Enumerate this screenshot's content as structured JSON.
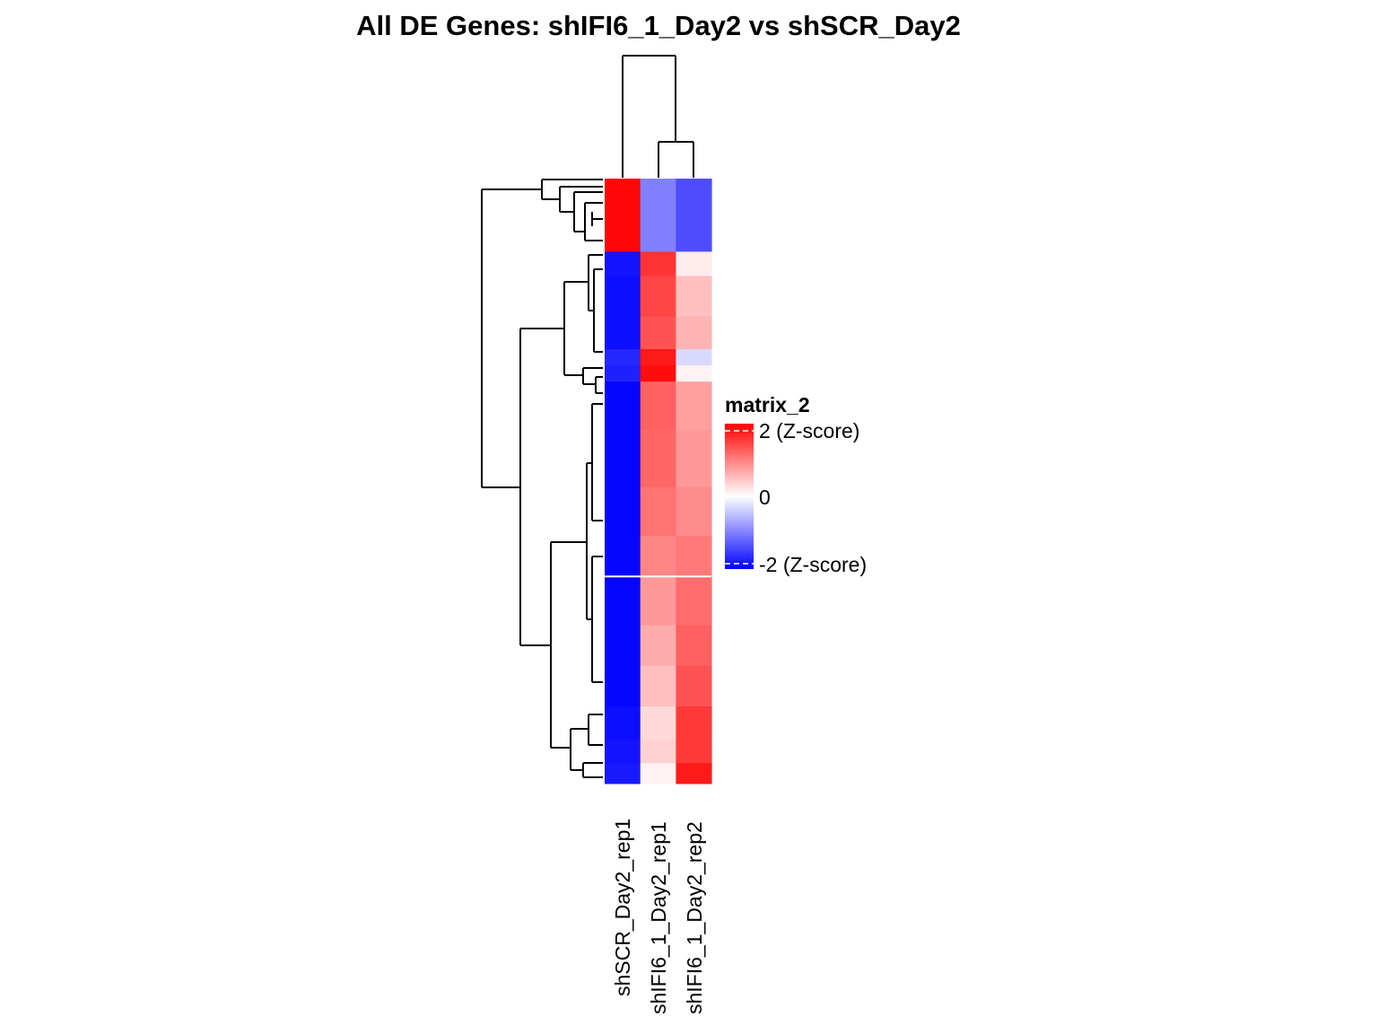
{
  "chart_data": {
    "type": "heatmap",
    "title": "All DE Genes: shIFI6_1_Day2  vs  shSCR_Day2",
    "columns": [
      "shSCR_Day2_rep1",
      "shIFI6_1_Day2_rep1",
      "shIFI6_1_Day2_rep2"
    ],
    "legend": {
      "title": "matrix_2",
      "breaks": [
        {
          "value": 2,
          "label": "2 (Z-score)"
        },
        {
          "value": 0,
          "label": "0"
        },
        {
          "value": -2,
          "label": "-2 (Z-score)"
        }
      ],
      "colors": {
        "high": "#ff0000",
        "mid": "#ffffff",
        "low": "#0000ff"
      },
      "range": [
        -2,
        2
      ]
    },
    "column_dendrogram": [
      {
        "merge": [
          "shIFI6_1_Day2_rep1",
          "shIFI6_1_Day2_rep2"
        ],
        "height": 0.2
      },
      {
        "merge": [
          "shSCR_Day2_rep1",
          "cluster_1"
        ],
        "height": 1.0
      }
    ],
    "row_groups": [
      {
        "rows": 18,
        "values": [
          1.95,
          -1.0,
          -1.4
        ]
      },
      {
        "rows": 6,
        "values": [
          -1.85,
          1.6,
          0.15
        ]
      },
      {
        "rows": 10,
        "values": [
          -1.9,
          1.45,
          0.5
        ]
      },
      {
        "rows": 8,
        "values": [
          -1.9,
          1.35,
          0.6
        ]
      },
      {
        "rows": 4,
        "values": [
          -1.7,
          1.8,
          -0.3
        ]
      },
      {
        "rows": 4,
        "values": [
          -1.75,
          1.9,
          0.1
        ]
      },
      {
        "rows": 12,
        "values": [
          -1.95,
          1.25,
          0.75
        ]
      },
      {
        "rows": 14,
        "values": [
          -1.95,
          1.2,
          0.8
        ]
      },
      {
        "rows": 12,
        "values": [
          -1.95,
          1.1,
          0.9
        ]
      },
      {
        "rows": 10,
        "values": [
          -1.95,
          0.95,
          1.05
        ]
      },
      {
        "rows": 12,
        "values": [
          -1.95,
          0.8,
          1.15
        ]
      },
      {
        "rows": 10,
        "values": [
          -1.95,
          0.65,
          1.25
        ]
      },
      {
        "rows": 10,
        "values": [
          -1.95,
          0.5,
          1.35
        ]
      },
      {
        "rows": 8,
        "values": [
          -1.9,
          0.3,
          1.55
        ]
      },
      {
        "rows": 6,
        "values": [
          -1.85,
          0.35,
          1.55
        ]
      },
      {
        "rows": 5,
        "values": [
          -1.8,
          0.1,
          1.8
        ]
      }
    ],
    "row_split": "after row group 9"
  }
}
